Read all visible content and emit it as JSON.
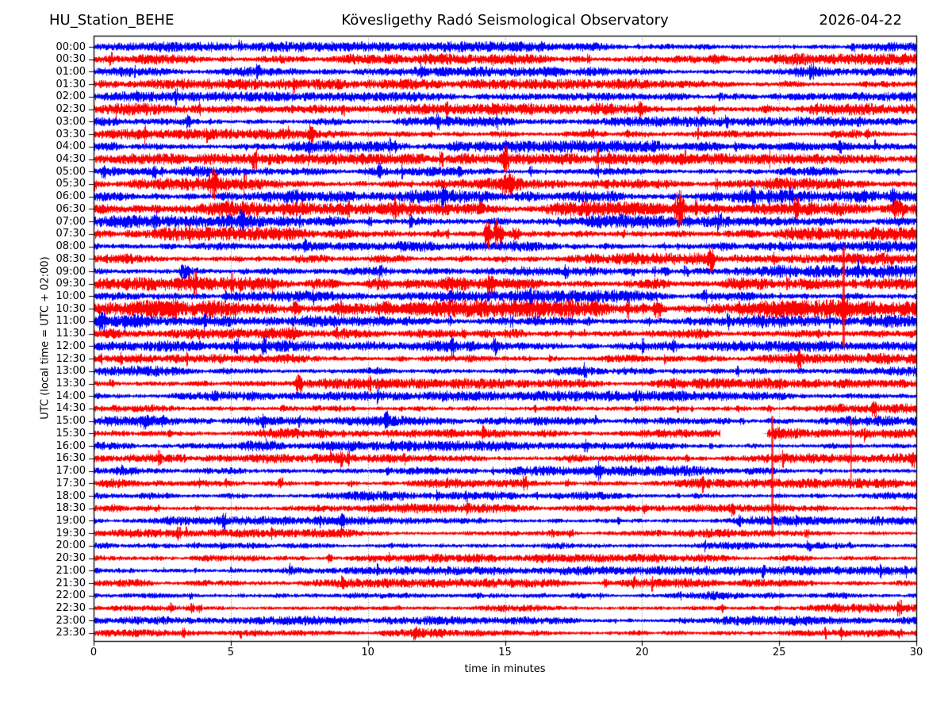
{
  "chart_data": {
    "type": "helicorder",
    "station_label": "HU_Station_BEHE",
    "title": "Kövesligethy Radó Seismological Observatory",
    "date": "2026-04-22",
    "xlabel": "time in minutes",
    "ylabel": "UTC (local time = UTC + 02:00)",
    "minutes_per_line": 30,
    "x_range": [
      0,
      30
    ],
    "x_ticks": [
      0,
      5,
      10,
      15,
      20,
      25,
      30
    ],
    "grid_minutes": [
      5,
      10,
      15,
      20,
      25
    ],
    "grid_style": "dotted",
    "trace_colors": {
      "blue": "#0000ff",
      "red": "#ff0000"
    },
    "rows": [
      {
        "label": "00:00",
        "color": "blue",
        "amp": 3.4
      },
      {
        "label": "00:30",
        "color": "red",
        "amp": 3.9
      },
      {
        "label": "01:00",
        "color": "blue",
        "amp": 3.2
      },
      {
        "label": "01:30",
        "color": "red",
        "amp": 3.5
      },
      {
        "label": "02:00",
        "color": "blue",
        "amp": 3.2
      },
      {
        "label": "02:30",
        "color": "red",
        "amp": 3.9
      },
      {
        "label": "03:00",
        "color": "blue",
        "amp": 3.4
      },
      {
        "label": "03:30",
        "color": "red",
        "amp": 3.5
      },
      {
        "label": "04:00",
        "color": "blue",
        "amp": 4.0
      },
      {
        "label": "04:30",
        "color": "red",
        "amp": 3.7
      },
      {
        "label": "05:00",
        "color": "blue",
        "amp": 3.5
      },
      {
        "label": "05:30",
        "color": "red",
        "amp": 4.1
      },
      {
        "label": "06:00",
        "color": "blue",
        "amp": 4.4
      },
      {
        "label": "06:30",
        "color": "red",
        "amp": 4.9
      },
      {
        "label": "07:00",
        "color": "blue",
        "amp": 4.4
      },
      {
        "label": "07:30",
        "color": "red",
        "amp": 4.4
      },
      {
        "label": "08:00",
        "color": "blue",
        "amp": 3.8
      },
      {
        "label": "08:30",
        "color": "red",
        "amp": 4.0
      },
      {
        "label": "09:00",
        "color": "blue",
        "amp": 4.1
      },
      {
        "label": "09:30",
        "color": "red",
        "amp": 4.8
      },
      {
        "label": "10:00",
        "color": "blue",
        "amp": 4.1
      },
      {
        "label": "10:30",
        "color": "red",
        "amp": 5.8
      },
      {
        "label": "11:00",
        "color": "blue",
        "amp": 4.4
      },
      {
        "label": "11:30",
        "color": "red",
        "amp": 4.0
      },
      {
        "label": "12:00",
        "color": "blue",
        "amp": 3.8
      },
      {
        "label": "12:30",
        "color": "red",
        "amp": 3.5
      },
      {
        "label": "13:00",
        "color": "blue",
        "amp": 3.5
      },
      {
        "label": "13:30",
        "color": "red",
        "amp": 3.5
      },
      {
        "label": "14:00",
        "color": "blue",
        "amp": 3.5
      },
      {
        "label": "14:30",
        "color": "red",
        "amp": 3.2
      },
      {
        "label": "15:00",
        "color": "blue",
        "amp": 3.5
      },
      {
        "label": "15:30",
        "color": "red",
        "amp": 3.4
      },
      {
        "label": "16:00",
        "color": "blue",
        "amp": 3.4
      },
      {
        "label": "16:30",
        "color": "red",
        "amp": 3.2
      },
      {
        "label": "17:00",
        "color": "blue",
        "amp": 3.4
      },
      {
        "label": "17:30",
        "color": "red",
        "amp": 3.2
      },
      {
        "label": "18:00",
        "color": "blue",
        "amp": 3.2
      },
      {
        "label": "18:30",
        "color": "red",
        "amp": 3.2
      },
      {
        "label": "19:00",
        "color": "blue",
        "amp": 3.0
      },
      {
        "label": "19:30",
        "color": "red",
        "amp": 2.8
      },
      {
        "label": "20:00",
        "color": "blue",
        "amp": 3.0
      },
      {
        "label": "20:30",
        "color": "red",
        "amp": 3.0
      },
      {
        "label": "21:00",
        "color": "blue",
        "amp": 3.0
      },
      {
        "label": "21:30",
        "color": "red",
        "amp": 3.0
      },
      {
        "label": "22:00",
        "color": "blue",
        "amp": 3.1
      },
      {
        "label": "22:30",
        "color": "red",
        "amp": 3.0
      },
      {
        "label": "23:00",
        "color": "blue",
        "amp": 3.1
      },
      {
        "label": "23:30",
        "color": "red",
        "amp": 3.0
      }
    ],
    "events": [
      {
        "row": "00:30",
        "t": 22.6,
        "dur": 0.3,
        "amp": 6
      },
      {
        "row": "02:30",
        "t": 6.1,
        "dur": 0.4,
        "amp": 5
      },
      {
        "row": "04:00",
        "t": 15.0,
        "dur": 0.15,
        "amp": 8
      },
      {
        "row": "04:00",
        "t": 22.3,
        "dur": 1.4,
        "amp": 5.5
      },
      {
        "row": "04:00",
        "t": 25.7,
        "dur": 1.2,
        "amp": 5.5
      },
      {
        "row": "04:00",
        "t": 27.3,
        "dur": 0.9,
        "amp": 5.5
      },
      {
        "row": "04:30",
        "t": 15.0,
        "dur": 0.22,
        "amp": 18
      },
      {
        "row": "05:30",
        "t": 4.35,
        "dur": 0.28,
        "amp": 20
      },
      {
        "row": "05:30",
        "t": 15.1,
        "dur": 0.45,
        "amp": 15
      },
      {
        "row": "06:30",
        "t": 20.3,
        "dur": 3.0,
        "amp": 6
      },
      {
        "row": "06:30",
        "t": 21.35,
        "dur": 0.3,
        "amp": 22
      },
      {
        "row": "06:30",
        "t": 23.2,
        "dur": 1.6,
        "amp": 5
      },
      {
        "row": "06:30",
        "t": 29.35,
        "dur": 0.4,
        "amp": 12
      },
      {
        "row": "07:30",
        "t": 14.35,
        "dur": 0.18,
        "amp": 20
      },
      {
        "row": "07:30",
        "t": 14.75,
        "dur": 0.28,
        "amp": 18
      },
      {
        "row": "07:30",
        "t": 15.35,
        "dur": 0.4,
        "amp": 8
      },
      {
        "row": "08:30",
        "t": 22.5,
        "dur": 0.22,
        "amp": 15
      },
      {
        "row": "09:00",
        "t": 3.3,
        "dur": 0.28,
        "amp": 11
      },
      {
        "row": "09:30",
        "t": 10.4,
        "dur": 0.8,
        "amp": 8
      },
      {
        "row": "09:30",
        "t": 11.6,
        "dur": 1.2,
        "amp": 6
      },
      {
        "row": "09:30",
        "t": 12.95,
        "dur": 0.5,
        "amp": 9
      },
      {
        "row": "09:30",
        "t": 14.45,
        "dur": 0.3,
        "amp": 15
      },
      {
        "row": "09:30",
        "t": 15.6,
        "dur": 0.9,
        "amp": 6
      },
      {
        "row": "10:00",
        "t": 4.8,
        "dur": 0.18,
        "amp": 7
      },
      {
        "row": "10:30",
        "t": 2.4,
        "dur": 1.1,
        "amp": 11
      },
      {
        "row": "10:30",
        "t": 2.95,
        "dur": 0.2,
        "amp": 16
      },
      {
        "row": "10:30",
        "t": 4.35,
        "dur": 0.4,
        "amp": 11
      },
      {
        "row": "10:30",
        "t": 7.35,
        "dur": 0.3,
        "amp": 9
      },
      {
        "row": "10:30",
        "t": 9.0,
        "dur": 0.6,
        "amp": 9
      },
      {
        "row": "10:30",
        "t": 11.8,
        "dur": 2.2,
        "amp": 6.5
      },
      {
        "row": "10:30",
        "t": 20.55,
        "dur": 0.25,
        "amp": 13
      },
      {
        "row": "10:30",
        "t": 24.9,
        "dur": 1.8,
        "amp": 11
      },
      {
        "row": "10:30",
        "t": 27.35,
        "dur": 0.5,
        "amp": 14
      },
      {
        "row": "10:30",
        "t": 28.4,
        "dur": 1.0,
        "amp": 9
      },
      {
        "row": "10:30",
        "t": 29.6,
        "dur": 0.35,
        "amp": 9
      },
      {
        "row": "11:00",
        "t": 0.3,
        "dur": 0.25,
        "amp": 15
      },
      {
        "row": "11:00",
        "t": 1.3,
        "dur": 1.4,
        "amp": 6.5
      },
      {
        "row": "11:30",
        "t": 7.25,
        "dur": 0.45,
        "amp": 9
      },
      {
        "row": "13:30",
        "t": 7.45,
        "dur": 0.18,
        "amp": 13
      },
      {
        "row": "15:00",
        "t": 1.85,
        "dur": 0.28,
        "amp": 12
      },
      {
        "row": "15:00",
        "t": 2.5,
        "dur": 0.22,
        "amp": 8
      },
      {
        "row": "15:30",
        "t": 24.95,
        "dur": 0.4,
        "amp": 8
      },
      {
        "row": "17:00",
        "t": 18.4,
        "dur": 0.2,
        "amp": 12
      }
    ],
    "spikes": [
      {
        "row": "10:30",
        "t": 27.35,
        "up": 78,
        "down": 48,
        "w": 3
      },
      {
        "row": "15:30",
        "t": 24.75,
        "up": 22,
        "down": 127,
        "w": 2.5
      },
      {
        "row": "15:30",
        "t": 27.62,
        "up": 18,
        "down": 57,
        "w": 1.5
      }
    ],
    "gaps": [
      {
        "row": "15:30",
        "t0": 22.85,
        "t1": 24.55
      }
    ]
  }
}
